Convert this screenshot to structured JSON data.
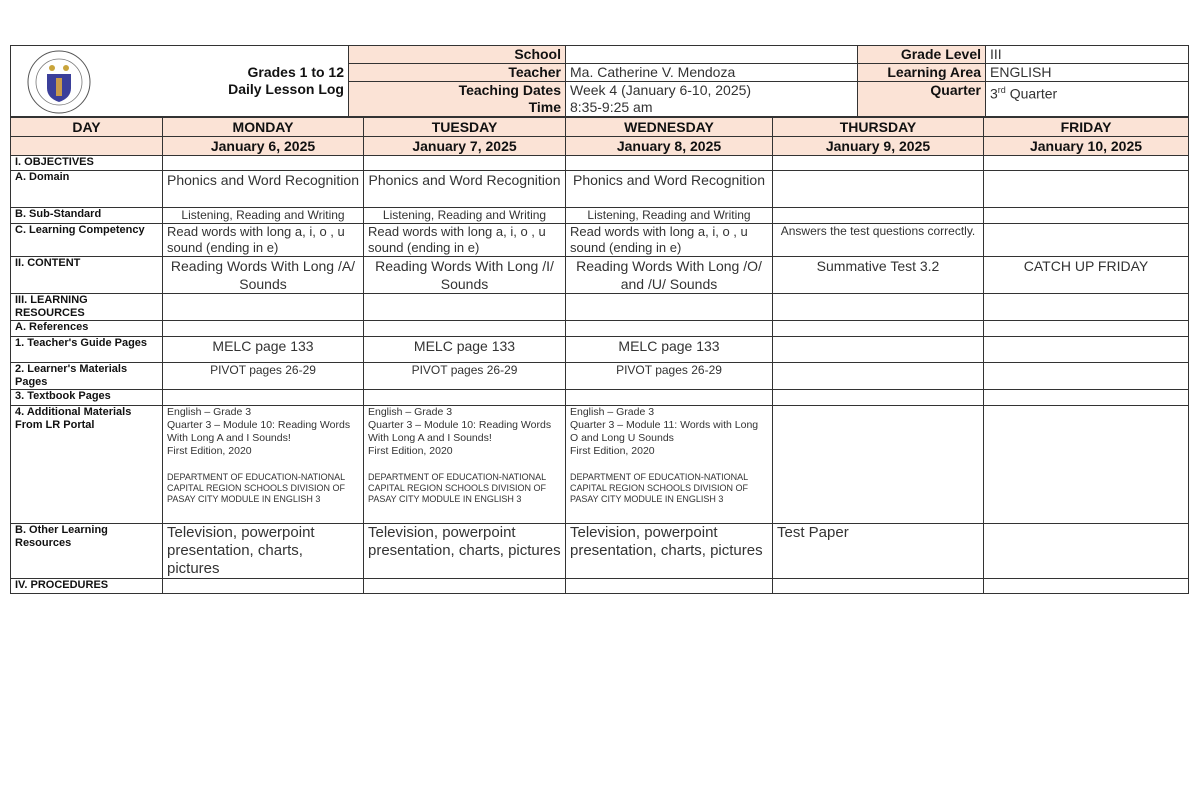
{
  "header": {
    "logo_text": "KAGAWARAN NG EDUKASYON",
    "title_line1": "Grades 1 to 12",
    "title_line2": "Daily Lesson Log",
    "school_label": "School",
    "school_value": "",
    "teacher_label": "Teacher",
    "teacher_value": "Ma. Catherine V. Mendoza",
    "dates_label": "Teaching Dates",
    "dates_value": "Week 4 (January 6-10, 2025)",
    "time_label": "Time",
    "time_value": "8:35-9:25 am",
    "grade_label": "Grade Level",
    "grade_value": "III",
    "area_label": "Learning Area",
    "area_value": "ENGLISH",
    "quarter_label": "Quarter",
    "quarter_num": "3",
    "quarter_sup": "rd",
    "quarter_word": " Quarter"
  },
  "day_label": "DAY",
  "days": [
    {
      "name": "MONDAY",
      "date": "January 6, 2025"
    },
    {
      "name": "TUESDAY",
      "date": "January 7, 2025"
    },
    {
      "name": "WEDNESDAY",
      "date": "January 8, 2025"
    },
    {
      "name": "THURSDAY",
      "date": "January 9, 2025"
    },
    {
      "name": "FRIDAY",
      "date": "January 10, 2025"
    }
  ],
  "rows": {
    "objectives": "I. OBJECTIVES",
    "domain": {
      "label": "A.   Domain",
      "values": [
        "Phonics and Word Recognition",
        "Phonics and Word Recognition",
        "Phonics and Word Recognition",
        "",
        ""
      ]
    },
    "substandard": {
      "label": "B.   Sub-Standard",
      "values": [
        "Listening, Reading and Writing",
        "Listening, Reading and Writing",
        "Listening, Reading and Writing",
        "",
        ""
      ]
    },
    "competency": {
      "label": "C.   Learning Competency",
      "values": [
        "Read words with long a, i, o , u sound (ending in e)",
        "Read words with long a, i, o , u sound (ending in e)",
        "Read words with long a, i, o , u sound (ending in e)",
        "Answers the test questions correctly.",
        ""
      ]
    },
    "content": {
      "label": "II. CONTENT",
      "values": [
        "Reading Words With Long /A/ Sounds",
        "Reading Words With Long /I/ Sounds",
        "Reading Words With Long /O/ and /U/ Sounds",
        "Summative Test 3.2",
        "CATCH UP FRIDAY"
      ]
    },
    "resources": "III. LEARNING RESOURCES",
    "references": "A.  References",
    "tg": {
      "label": "1.  Teacher's Guide Pages",
      "values": [
        "MELC page 133",
        "MELC page 133",
        "MELC page 133",
        "",
        ""
      ]
    },
    "lm": {
      "label": "2.  Learner's Materials Pages",
      "values": [
        "PIVOT pages 26-29",
        "PIVOT pages 26-29",
        "PIVOT pages 26-29",
        "",
        ""
      ]
    },
    "textbook": "3.  Textbook Pages",
    "additional": {
      "label": "4.  Additional Materials From LR Portal",
      "values": [
        {
          "main": "English – Grade 3\nQuarter 3 – Module 10: Reading Words With Long A and I Sounds!\nFirst Edition, 2020",
          "dept": "DEPARTMENT OF EDUCATION-NATIONAL CAPITAL REGION SCHOOLS DIVISION OF PASAY CITY MODULE IN ENGLISH 3"
        },
        {
          "main": "English – Grade 3\nQuarter 3 – Module 10: Reading Words With Long A and I Sounds!\nFirst Edition, 2020",
          "dept": "DEPARTMENT OF EDUCATION-NATIONAL CAPITAL REGION SCHOOLS DIVISION OF PASAY CITY MODULE IN ENGLISH 3"
        },
        {
          "main": "English – Grade 3\nQuarter 3 – Module 11: Words with Long O and Long U Sounds\nFirst Edition, 2020",
          "dept": "DEPARTMENT OF EDUCATION-NATIONAL CAPITAL REGION SCHOOLS DIVISION OF PASAY CITY MODULE IN ENGLISH 3"
        }
      ]
    },
    "other": {
      "label": "B. Other Learning Resources",
      "values": [
        "Television, powerpoint presentation, charts, pictures",
        "Television, powerpoint presentation, charts, pictures",
        "Television, powerpoint presentation, charts, pictures",
        "Test Paper",
        ""
      ]
    },
    "procedures": "IV. PROCEDURES"
  },
  "colors": {
    "header_fill": "#fbe3d6",
    "border": "#333333"
  }
}
